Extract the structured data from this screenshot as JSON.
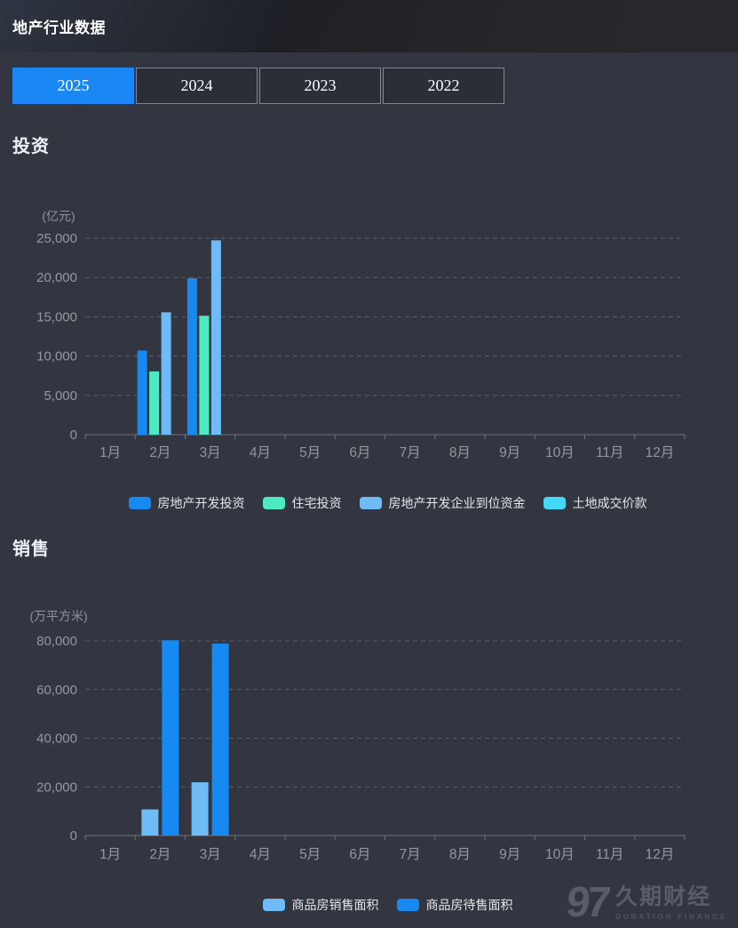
{
  "header": {
    "title": "地产行业数据"
  },
  "tabs": [
    {
      "label": "2025",
      "active": true
    },
    {
      "label": "2024",
      "active": false
    },
    {
      "label": "2023",
      "active": false
    },
    {
      "label": "2022",
      "active": false
    }
  ],
  "colors": {
    "active_tab": "#1b87f5",
    "axis_line": "#6e727b",
    "grid_dash": "#5b5f68",
    "tick_label": "#93979f",
    "unit_label": "#8d929b"
  },
  "watermark": {
    "mark": "97",
    "name_cn": "久期财经",
    "name_en": "DURATION FINANCE"
  },
  "chart_data": [
    {
      "type": "bar",
      "section_title": "投资",
      "unit": "(亿元)",
      "categories": [
        "1月",
        "2月",
        "3月",
        "4月",
        "5月",
        "6月",
        "7月",
        "8月",
        "9月",
        "10月",
        "11月",
        "12月"
      ],
      "series": [
        {
          "name": "房地产开发投资",
          "color": "#168af2",
          "values": [
            0,
            10700,
            19900,
            0,
            0,
            0,
            0,
            0,
            0,
            0,
            0,
            0
          ]
        },
        {
          "name": "住宅投资",
          "color": "#4deac1",
          "values": [
            0,
            8050,
            15130,
            0,
            0,
            0,
            0,
            0,
            0,
            0,
            0,
            0
          ]
        },
        {
          "name": "房地产开发企业到位资金",
          "color": "#6fbbf5",
          "values": [
            0,
            15570,
            24730,
            0,
            0,
            0,
            0,
            0,
            0,
            0,
            0,
            0
          ]
        },
        {
          "name": "土地成交价款",
          "color": "#45d8f6",
          "values": [
            0,
            0,
            0,
            0,
            0,
            0,
            0,
            0,
            0,
            0,
            0,
            0
          ]
        }
      ],
      "y_ticks": [
        0,
        5000,
        10000,
        15000,
        20000,
        25000
      ],
      "ylim": [
        0,
        25000
      ],
      "grid": true,
      "legend_position": "bottom"
    },
    {
      "type": "bar",
      "section_title": "销售",
      "unit": "(万平方米)",
      "categories": [
        "1月",
        "2月",
        "3月",
        "4月",
        "5月",
        "6月",
        "7月",
        "8月",
        "9月",
        "10月",
        "11月",
        "12月"
      ],
      "series": [
        {
          "name": "商品房销售面积",
          "color": "#6fbbf5",
          "values": [
            0,
            10750,
            21900,
            0,
            0,
            0,
            0,
            0,
            0,
            0,
            0,
            0
          ]
        },
        {
          "name": "商品房待售面积",
          "color": "#168af2",
          "values": [
            0,
            80260,
            78870,
            0,
            0,
            0,
            0,
            0,
            0,
            0,
            0,
            0
          ]
        }
      ],
      "y_ticks": [
        0,
        20000,
        40000,
        60000,
        80000
      ],
      "ylim": [
        0,
        80000
      ],
      "grid": true,
      "legend_position": "bottom"
    }
  ]
}
